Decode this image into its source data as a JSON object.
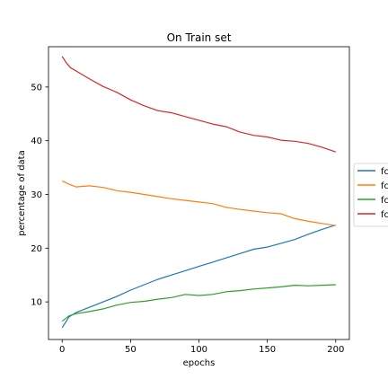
{
  "chart_data": {
    "type": "line",
    "title": "On Train set",
    "xlabel": "epochs",
    "ylabel": "percentage of data",
    "xlim": [
      -10,
      210
    ],
    "ylim": [
      3,
      57.5
    ],
    "xticks": [
      0,
      50,
      100,
      150,
      200
    ],
    "yticks": [
      10,
      20,
      30,
      40,
      50
    ],
    "grid": false,
    "legend_placement": "right, outside plot area (truncated)",
    "series": [
      {
        "name": "fc",
        "color": "#1f77b4",
        "x": [
          0,
          5,
          10,
          20,
          30,
          40,
          50,
          60,
          70,
          80,
          90,
          100,
          110,
          120,
          130,
          140,
          150,
          160,
          170,
          180,
          190,
          200
        ],
        "y": [
          5.2,
          7.2,
          8.0,
          9.0,
          10.0,
          11.0,
          12.2,
          13.2,
          14.2,
          15.0,
          15.8,
          16.6,
          17.4,
          18.2,
          19.0,
          19.8,
          20.2,
          20.9,
          21.6,
          22.6,
          23.5,
          24.3
        ]
      },
      {
        "name": "fc",
        "color": "#ff7f0e",
        "x": [
          0,
          5,
          10,
          20,
          30,
          40,
          50,
          60,
          70,
          80,
          90,
          100,
          110,
          120,
          130,
          140,
          150,
          160,
          170,
          180,
          190,
          200
        ],
        "y": [
          32.5,
          31.9,
          31.4,
          31.6,
          31.3,
          30.7,
          30.4,
          30.0,
          29.6,
          29.2,
          28.9,
          28.6,
          28.3,
          27.6,
          27.2,
          26.9,
          26.6,
          26.4,
          25.5,
          25.0,
          24.6,
          24.2
        ]
      },
      {
        "name": "fc",
        "color": "#2ca02c",
        "x": [
          0,
          5,
          10,
          20,
          30,
          40,
          50,
          60,
          70,
          80,
          90,
          100,
          110,
          120,
          130,
          140,
          150,
          160,
          170,
          180,
          190,
          200
        ],
        "y": [
          6.4,
          7.4,
          7.8,
          8.2,
          8.7,
          9.4,
          9.9,
          10.1,
          10.5,
          10.8,
          11.4,
          11.2,
          11.4,
          11.9,
          12.1,
          12.4,
          12.6,
          12.8,
          13.1,
          13.0,
          13.1,
          13.2
        ]
      },
      {
        "name": "fc",
        "color": "#d62728",
        "x": [
          0,
          3,
          6,
          10,
          20,
          30,
          40,
          50,
          60,
          70,
          80,
          90,
          100,
          110,
          120,
          130,
          140,
          150,
          160,
          170,
          180,
          190,
          200
        ],
        "y": [
          55.7,
          54.5,
          53.6,
          53.0,
          51.5,
          50.1,
          49.0,
          47.6,
          46.5,
          45.6,
          45.2,
          44.5,
          43.8,
          43.1,
          42.6,
          41.6,
          41.0,
          40.7,
          40.1,
          39.9,
          39.5,
          38.8,
          37.9
        ]
      }
    ]
  }
}
